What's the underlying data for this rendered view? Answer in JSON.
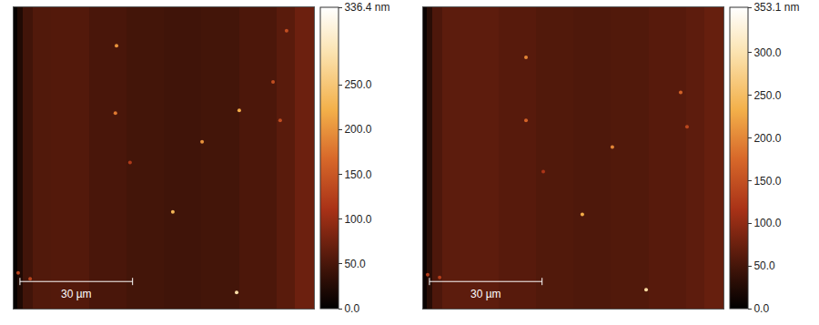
{
  "chart_data": [
    {
      "type": "heatmap",
      "x": [
        0,
        1,
        2.5,
        5,
        10,
        20,
        30,
        40,
        50,
        60,
        70,
        75,
        80
      ],
      "y": [
        0,
        80
      ],
      "cells": [
        [
          5,
          22,
          45,
          55,
          56,
          50,
          46,
          44,
          46,
          52,
          60,
          72
        ]
      ],
      "xlim": [
        0,
        80
      ],
      "ylim": [
        0,
        80
      ],
      "tick_labels": false,
      "particles": {
        "x": [
          27.4,
          60.1,
          50.2,
          27.1,
          42.4,
          59.4,
          72.7,
          69.1,
          71.0,
          1.2,
          4.4,
          31.0
        ],
        "y": [
          69.8,
          52.6,
          44.3,
          51.9,
          25.7,
          4.3,
          73.8,
          60.2,
          50.0,
          9.5,
          7.9,
          38.8
        ],
        "values": [
          200,
          220,
          200,
          180,
          230,
          280,
          140,
          140,
          140,
          130,
          130,
          120
        ]
      },
      "colorbar": {
        "range": [
          0,
          336.4
        ],
        "ticks": [
          {
            "value": 0,
            "label": "0.0"
          },
          {
            "value": 50,
            "label": "50.0"
          },
          {
            "value": 100,
            "label": "100.0"
          },
          {
            "value": 150,
            "label": "150.0"
          },
          {
            "value": 200,
            "label": "200.0"
          },
          {
            "value": 250,
            "label": "250.0"
          },
          {
            "value": 336.4,
            "label": "336.4 nm"
          }
        ]
      },
      "scale_bar": {
        "length": 30,
        "label": "30 µm"
      }
    },
    {
      "type": "heatmap",
      "x": [
        0,
        1,
        2.5,
        5,
        10,
        20,
        30,
        40,
        50,
        60,
        70,
        75,
        80
      ],
      "y": [
        0,
        80
      ],
      "cells": [
        [
          8,
          30,
          55,
          65,
          66,
          62,
          58,
          56,
          58,
          62,
          66,
          72
        ]
      ],
      "xlim": [
        0,
        80
      ],
      "ylim": [
        0,
        80
      ],
      "tick_labels": false,
      "particles": {
        "x": [
          27.4,
          68.6,
          27.4,
          50.4,
          42.4,
          59.4,
          70.3,
          1.2,
          4.4,
          32.0
        ],
        "y": [
          66.7,
          57.4,
          50.0,
          42.9,
          25.0,
          5.0,
          48.3,
          9.0,
          8.3,
          36.4
        ],
        "values": [
          200,
          170,
          170,
          200,
          230,
          290,
          140,
          130,
          130,
          120
        ]
      },
      "colorbar": {
        "range": [
          0,
          353.1
        ],
        "ticks": [
          {
            "value": 0,
            "label": "0.0"
          },
          {
            "value": 50,
            "label": "50.0"
          },
          {
            "value": 100,
            "label": "100.0"
          },
          {
            "value": 150,
            "label": "150.0"
          },
          {
            "value": 200,
            "label": "200.0"
          },
          {
            "value": 250,
            "label": "250.0"
          },
          {
            "value": 300,
            "label": "300.0"
          },
          {
            "value": 353.1,
            "label": "353.1 nm"
          }
        ]
      },
      "scale_bar": {
        "length": 30,
        "label": "30 µm"
      }
    }
  ]
}
